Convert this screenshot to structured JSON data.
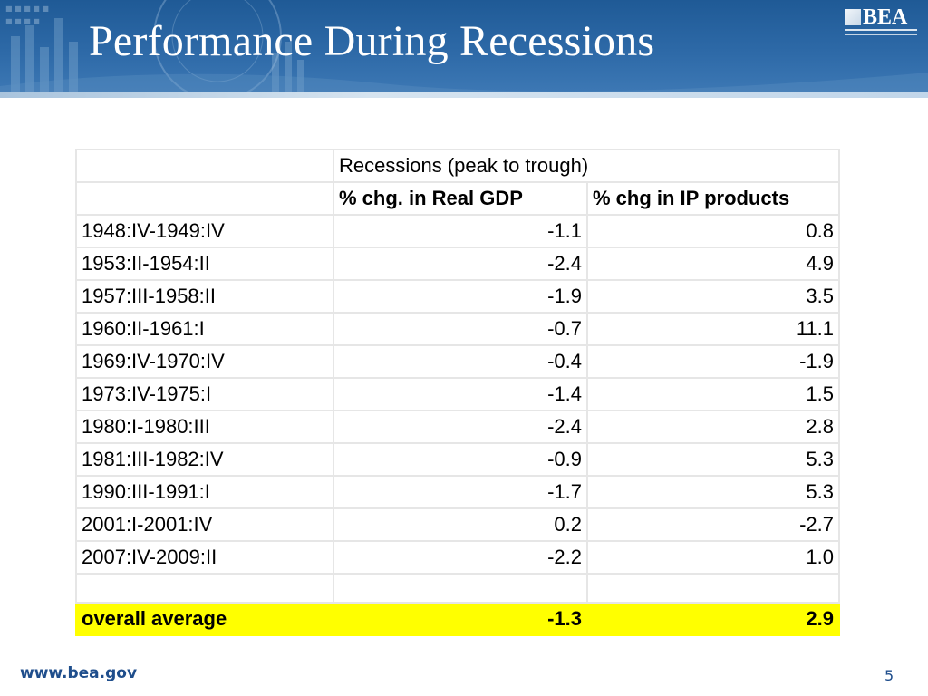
{
  "slide": {
    "title": "Performance During Recessions",
    "logo_text": "BEA",
    "footer_url": "www.bea.gov",
    "page_number": "5",
    "colors": {
      "banner": "#2e6aa8",
      "highlight": "#ffff00",
      "footer_text": "#1f4e8c"
    }
  },
  "table": {
    "group_header": "Recessions (peak to trough)",
    "col_headers": [
      "% chg. in Real GDP",
      "% chg in IP products"
    ],
    "rows": [
      {
        "period": "1948:IV-1949:IV",
        "gdp": "-1.1",
        "ip": "0.8"
      },
      {
        "period": "1953:II-1954:II",
        "gdp": "-2.4",
        "ip": "4.9"
      },
      {
        "period": "1957:III-1958:II",
        "gdp": "-1.9",
        "ip": "3.5"
      },
      {
        "period": "1960:II-1961:I",
        "gdp": "-0.7",
        "ip": "11.1"
      },
      {
        "period": "1969:IV-1970:IV",
        "gdp": "-0.4",
        "ip": "-1.9"
      },
      {
        "period": "1973:IV-1975:I",
        "gdp": "-1.4",
        "ip": "1.5"
      },
      {
        "period": "1980:I-1980:III",
        "gdp": "-2.4",
        "ip": "2.8"
      },
      {
        "period": "1981:III-1982:IV",
        "gdp": "-0.9",
        "ip": "5.3"
      },
      {
        "period": "1990:III-1991:I",
        "gdp": "-1.7",
        "ip": "5.3"
      },
      {
        "period": "2001:I-2001:IV",
        "gdp": "0.2",
        "ip": "-2.7"
      },
      {
        "period": "2007:IV-2009:II",
        "gdp": "-2.2",
        "ip": "1.0"
      }
    ],
    "summary": {
      "label": "overall average",
      "gdp": "-1.3",
      "ip": "2.9"
    }
  }
}
